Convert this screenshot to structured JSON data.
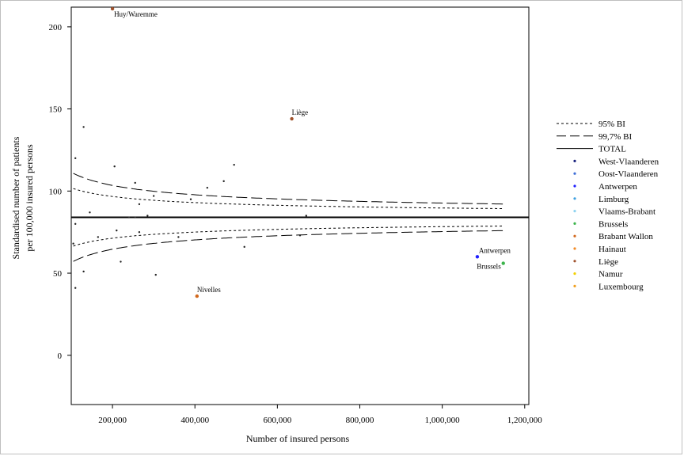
{
  "chart_data": {
    "type": "scatter",
    "xlabel": "Number of insured persons",
    "ylabel": [
      "Standardised number of patients",
      "per 100,000 insured persons"
    ],
    "xlim": [
      100000,
      1210000
    ],
    "ylim": [
      -30,
      212
    ],
    "xticks": [
      200000,
      400000,
      600000,
      800000,
      1000000,
      1200000
    ],
    "xtick_labels": [
      "200,000",
      "400,000",
      "600,000",
      "800,000",
      "1,000,000",
      "1,200,000"
    ],
    "yticks": [
      0,
      50,
      100,
      150,
      200
    ],
    "ytick_labels": [
      "0",
      "50",
      "100",
      "150",
      "200"
    ],
    "total": 84,
    "grid": false,
    "legend_position": "right",
    "legend": [
      {
        "label": "95% BI",
        "kind": "line",
        "dash": "dotted"
      },
      {
        "label": "99,7% BI",
        "kind": "line",
        "dash": "dashed"
      },
      {
        "label": "TOTAL",
        "kind": "line",
        "dash": "solid"
      },
      {
        "label": "West-Vlaanderen",
        "kind": "dot",
        "color": "#1a237e"
      },
      {
        "label": "Oost-Vlaanderen",
        "kind": "dot",
        "color": "#3f6fd8"
      },
      {
        "label": "Antwerpen",
        "kind": "dot",
        "color": "#1f1fff"
      },
      {
        "label": "Limburg",
        "kind": "dot",
        "color": "#3fa0e0"
      },
      {
        "label": "Vlaams-Brabant",
        "kind": "dot",
        "color": "#8fd3f0"
      },
      {
        "label": "Brussels",
        "kind": "dot",
        "color": "#3cb44b"
      },
      {
        "label": "Brabant Wallon",
        "kind": "dot",
        "color": "#d2691e"
      },
      {
        "label": "Hainaut",
        "kind": "dot",
        "color": "#f28c28"
      },
      {
        "label": "Liège",
        "kind": "dot",
        "color": "#a0522d"
      },
      {
        "label": "Namur",
        "kind": "dot",
        "color": "#f2d000"
      },
      {
        "label": "Luxembourg",
        "kind": "dot",
        "color": "#f0a020"
      }
    ],
    "labeled_points": [
      {
        "name": "Huy/Waremme",
        "x": 200000,
        "y": 211,
        "color": "#a0522d"
      },
      {
        "name": "Liège",
        "x": 635000,
        "y": 144,
        "color": "#a0522d"
      },
      {
        "name": "Nivelles",
        "x": 405000,
        "y": 36,
        "color": "#d2691e"
      },
      {
        "name": "Antwerpen",
        "x": 1085000,
        "y": 60,
        "color": "#1f1fff"
      },
      {
        "name": "Brussels",
        "x": 1148000,
        "y": 56,
        "color": "#3cb44b"
      }
    ],
    "points": [
      {
        "x": 110000,
        "y": 120
      },
      {
        "x": 130000,
        "y": 139
      },
      {
        "x": 145000,
        "y": 87
      },
      {
        "x": 205000,
        "y": 115
      },
      {
        "x": 255000,
        "y": 105
      },
      {
        "x": 265000,
        "y": 92
      },
      {
        "x": 285000,
        "y": 85
      },
      {
        "x": 300000,
        "y": 97
      },
      {
        "x": 240000,
        "y": 84
      },
      {
        "x": 255000,
        "y": 84
      },
      {
        "x": 390000,
        "y": 95
      },
      {
        "x": 430000,
        "y": 102
      },
      {
        "x": 470000,
        "y": 106
      },
      {
        "x": 495000,
        "y": 116
      },
      {
        "x": 670000,
        "y": 85
      },
      {
        "x": 105000,
        "y": 68
      },
      {
        "x": 110000,
        "y": 80
      },
      {
        "x": 110000,
        "y": 41
      },
      {
        "x": 130000,
        "y": 51
      },
      {
        "x": 165000,
        "y": 72
      },
      {
        "x": 210000,
        "y": 76
      },
      {
        "x": 220000,
        "y": 57
      },
      {
        "x": 265000,
        "y": 75
      },
      {
        "x": 305000,
        "y": 49
      },
      {
        "x": 360000,
        "y": 72
      },
      {
        "x": 520000,
        "y": 66
      },
      {
        "x": 655000,
        "y": 73
      }
    ],
    "ci_x_range": [
      105000,
      1150000
    ]
  }
}
